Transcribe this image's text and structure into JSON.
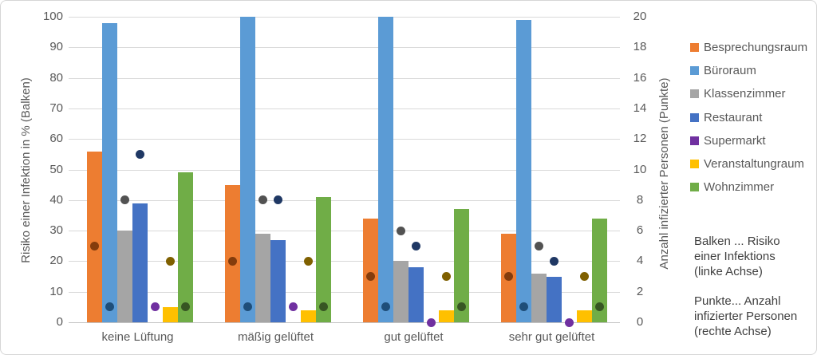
{
  "chart_data": {
    "type": "bar",
    "subtype": "combo-bar-scatter",
    "categories": [
      "keine Lüftung",
      "mäßig gelüftet",
      "gut gelüftet",
      "sehr gut gelüftet"
    ],
    "left_axis": {
      "title": "Risiko einer Infektion in % (Balken)",
      "min": 0,
      "max": 100,
      "step": 10
    },
    "right_axis": {
      "title": "Anzahl infizierter Personen (Punkte)",
      "min": 0,
      "max": 20,
      "step": 2
    },
    "grid": "horizontal",
    "legend_position": "right",
    "series": [
      {
        "name": "Besprechungsraum",
        "bar_color": "#ED7D31",
        "dot_color": "#843C0C",
        "bars_pct": [
          56,
          45,
          34,
          29
        ],
        "dots_persons": [
          5,
          4,
          3,
          3
        ]
      },
      {
        "name": "Büroraum",
        "bar_color": "#5B9BD5",
        "dot_color": "#1F4E79",
        "bars_pct": [
          98,
          100,
          100,
          99
        ],
        "dots_persons": [
          1,
          1,
          1,
          1
        ]
      },
      {
        "name": "Klassenzimmer",
        "bar_color": "#A5A5A5",
        "dot_color": "#525252",
        "bars_pct": [
          30,
          29,
          20,
          16
        ],
        "dots_persons": [
          8,
          8,
          6,
          5
        ]
      },
      {
        "name": "Restaurant",
        "bar_color": "#4472C4",
        "dot_color": "#1F3864",
        "bars_pct": [
          39,
          27,
          18,
          15
        ],
        "dots_persons": [
          11,
          8,
          5,
          4
        ]
      },
      {
        "name": "Supermarkt",
        "bar_color": "#7030A0",
        "dot_color": "#7030A0",
        "bars_pct": [
          0,
          0,
          0,
          0
        ],
        "dots_persons": [
          1,
          1,
          0,
          0
        ]
      },
      {
        "name": "Veranstaltungraum",
        "bar_color": "#FFC000",
        "dot_color": "#7F6000",
        "bars_pct": [
          5,
          4,
          4,
          4
        ],
        "dots_persons": [
          4,
          4,
          3,
          3
        ]
      },
      {
        "name": "Wohnzimmer",
        "bar_color": "#70AD47",
        "dot_color": "#375623",
        "bars_pct": [
          49,
          41,
          37,
          34
        ],
        "dots_persons": [
          1,
          1,
          1,
          1
        ]
      }
    ],
    "notes": [
      "Balken ... Risiko\neiner Infektions\n(linke Achse)",
      "Punkte... Anzahl\ninfizierter Personen\n(rechte Achse)"
    ]
  }
}
